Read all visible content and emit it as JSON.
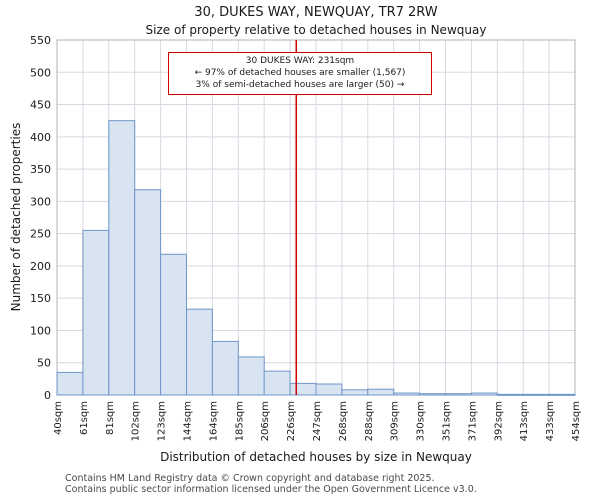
{
  "page": {
    "title_line1": "30, DUKES WAY, NEWQUAY, TR7 2RW",
    "title_line2": "Size of property relative to detached houses in Newquay",
    "footer_line1": "Contains HM Land Registry data © Crown copyright and database right 2025.",
    "footer_line2": "Contains public sector information licensed under the Open Government Licence v3.0."
  },
  "annotation": {
    "line1": "30 DUKES WAY: 231sqm",
    "line2": "← 97% of detached houses are smaller (1,567)",
    "line3": "3% of semi-detached houses are larger (50) →"
  },
  "chart_data": {
    "type": "bar",
    "title": "30, DUKES WAY, NEWQUAY, TR7 2RW — Size of property relative to detached houses in Newquay",
    "xlabel": "Distribution of detached houses by size in Newquay",
    "ylabel": "Number of detached properties",
    "categories": [
      "40sqm",
      "61sqm",
      "81sqm",
      "102sqm",
      "123sqm",
      "144sqm",
      "164sqm",
      "185sqm",
      "206sqm",
      "226sqm",
      "247sqm",
      "268sqm",
      "288sqm",
      "309sqm",
      "330sqm",
      "351sqm",
      "371sqm",
      "392sqm",
      "413sqm",
      "433sqm",
      "454sqm"
    ],
    "values": [
      35,
      255,
      425,
      318,
      218,
      133,
      83,
      59,
      37,
      18,
      17,
      8,
      9,
      3,
      2,
      2,
      3,
      1,
      1,
      1
    ],
    "ylim": [
      0,
      550
    ],
    "ytick_step": 50,
    "grid": true,
    "legend": "none",
    "marker_value_sqm": 231,
    "marker_color": "#cc0000",
    "bar_fill": "#d9e4f3",
    "bar_stroke": "#6e96c8",
    "grid_color": "#d8d8e2",
    "frame_color": "#b0b0ba"
  }
}
